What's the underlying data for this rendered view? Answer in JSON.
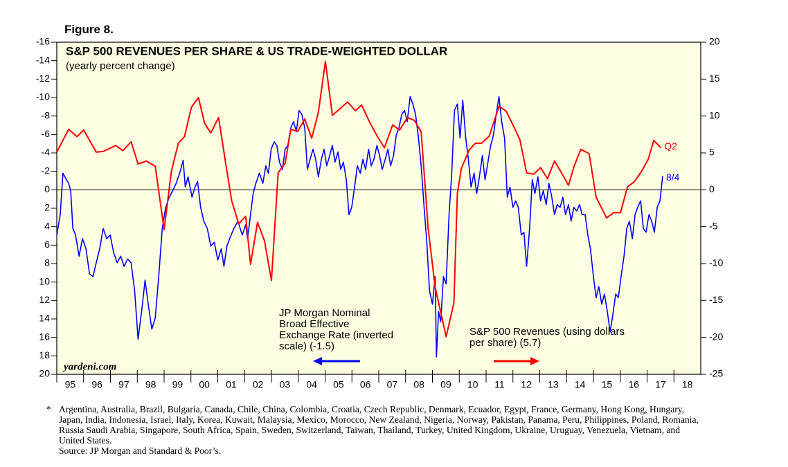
{
  "figure_label": "Figure 8.",
  "chart_data": {
    "type": "line",
    "title": "S&P 500 REVENUES PER SHARE & US TRADE-WEIGHTED DOLLAR",
    "subtitle": "(yearly percent change)",
    "watermark": "yardeni.com",
    "xlim": [
      1995,
      2019
    ],
    "xticks": [
      {
        "value": 1995.5,
        "label": "95"
      },
      {
        "value": 1996.5,
        "label": "96"
      },
      {
        "value": 1997.5,
        "label": "97"
      },
      {
        "value": 1998.5,
        "label": "98"
      },
      {
        "value": 1999.5,
        "label": "99"
      },
      {
        "value": 2000.5,
        "label": "00"
      },
      {
        "value": 2001.5,
        "label": "01"
      },
      {
        "value": 2002.5,
        "label": "02"
      },
      {
        "value": 2003.5,
        "label": "03"
      },
      {
        "value": 2004.5,
        "label": "04"
      },
      {
        "value": 2005.5,
        "label": "05"
      },
      {
        "value": 2006.5,
        "label": "06"
      },
      {
        "value": 2007.5,
        "label": "07"
      },
      {
        "value": 2008.5,
        "label": "08"
      },
      {
        "value": 2009.5,
        "label": "09"
      },
      {
        "value": 2010.5,
        "label": "10"
      },
      {
        "value": 2011.5,
        "label": "11"
      },
      {
        "value": 2012.5,
        "label": "12"
      },
      {
        "value": 2013.5,
        "label": "13"
      },
      {
        "value": 2014.5,
        "label": "14"
      },
      {
        "value": 2015.5,
        "label": "15"
      },
      {
        "value": 2016.5,
        "label": "16"
      },
      {
        "value": 2017.5,
        "label": "17"
      },
      {
        "value": 2018.5,
        "label": "18"
      }
    ],
    "ylim": [
      20,
      -16
    ],
    "yticks": [
      -16,
      -14,
      -12,
      -10,
      -8,
      -6,
      -4,
      -2,
      0,
      2,
      4,
      6,
      8,
      10,
      12,
      14,
      16,
      18,
      20
    ],
    "y2lim": [
      -25,
      20
    ],
    "y2ticks": [
      -25,
      -20,
      -15,
      -10,
      -5,
      0,
      5,
      10,
      15,
      20
    ],
    "zero_line": true,
    "series": [
      {
        "name": "JP Morgan Nominal Broad Effective Exchange Rate (inverted scale) (-1.5)",
        "end_label": "8/4",
        "color": "#0000ff",
        "axis": "y",
        "x": [
          1995.0,
          1995.13,
          1995.23,
          1995.36,
          1995.44,
          1995.52,
          1995.6,
          1995.7,
          1995.83,
          1995.96,
          1996.09,
          1996.22,
          1996.35,
          1996.47,
          1996.6,
          1996.73,
          1996.86,
          1996.99,
          1997.12,
          1997.25,
          1997.38,
          1997.51,
          1997.64,
          1997.77,
          1997.9,
          1998.03,
          1998.16,
          1998.29,
          1998.41,
          1998.54,
          1998.67,
          1998.8,
          1998.93,
          1999.06,
          1999.19,
          1999.32,
          1999.45,
          1999.58,
          1999.71,
          1999.79,
          1999.89,
          2000.04,
          2000.15,
          2000.25,
          2000.36,
          2000.48,
          2000.61,
          2000.74,
          2000.87,
          2001.0,
          2001.13,
          2001.23,
          2001.34,
          2001.44,
          2001.6,
          2001.75,
          2001.91,
          2002.04,
          2002.11,
          2002.22,
          2002.32,
          2002.42,
          2002.55,
          2002.68,
          2002.79,
          2002.89,
          2002.99,
          2003.1,
          2003.2,
          2003.3,
          2003.41,
          2003.51,
          2003.61,
          2003.72,
          2003.82,
          2003.93,
          2004.03,
          2004.13,
          2004.24,
          2004.34,
          2004.44,
          2004.55,
          2004.65,
          2004.75,
          2004.86,
          2004.96,
          2005.06,
          2005.17,
          2005.27,
          2005.37,
          2005.48,
          2005.58,
          2005.68,
          2005.79,
          2005.89,
          2005.99,
          2006.1,
          2006.2,
          2006.31,
          2006.41,
          2006.51,
          2006.62,
          2006.72,
          2006.82,
          2006.93,
          2007.03,
          2007.13,
          2007.24,
          2007.34,
          2007.44,
          2007.55,
          2007.65,
          2007.75,
          2007.86,
          2007.96,
          2008.06,
          2008.17,
          2008.27,
          2008.37,
          2008.48,
          2008.58,
          2008.69,
          2008.79,
          2008.89,
          2009.0,
          2009.1,
          2009.15,
          2009.23,
          2009.31,
          2009.41,
          2009.51,
          2009.62,
          2009.72,
          2009.82,
          2009.93,
          2010.03,
          2010.13,
          2010.24,
          2010.34,
          2010.44,
          2010.55,
          2010.65,
          2010.75,
          2010.86,
          2010.96,
          2011.07,
          2011.17,
          2011.27,
          2011.38,
          2011.48,
          2011.58,
          2011.69,
          2011.79,
          2011.89,
          2012.0,
          2012.1,
          2012.2,
          2012.31,
          2012.41,
          2012.51,
          2012.62,
          2012.72,
          2012.82,
          2012.93,
          2013.03,
          2013.13,
          2013.24,
          2013.34,
          2013.45,
          2013.55,
          2013.65,
          2013.76,
          2013.86,
          2013.96,
          2014.07,
          2014.17,
          2014.27,
          2014.38,
          2014.48,
          2014.58,
          2014.69,
          2014.79,
          2014.89,
          2015.0,
          2015.1,
          2015.2,
          2015.31,
          2015.41,
          2015.52,
          2015.62,
          2015.72,
          2015.83,
          2015.93,
          2016.03,
          2016.14,
          2016.24,
          2016.34,
          2016.45,
          2016.55,
          2016.65,
          2016.76,
          2016.86,
          2016.96,
          2017.07,
          2017.17,
          2017.27,
          2017.38,
          2017.48,
          2017.58
        ],
        "values": [
          4.9,
          2.7,
          -1.8,
          -1.1,
          -0.7,
          0.1,
          4.2,
          4.9,
          7.2,
          5.3,
          6.4,
          9.1,
          9.4,
          7.9,
          6.4,
          4.2,
          5.3,
          4.9,
          6.8,
          7.9,
          7.2,
          8.3,
          7.5,
          7.9,
          10.9,
          16.2,
          13.2,
          9.8,
          12.4,
          15.1,
          13.9,
          9.4,
          4.2,
          1.9,
          0.8,
          0.1,
          -0.7,
          -1.8,
          -3.2,
          -0.3,
          -1.4,
          0.8,
          -0.3,
          -0.9,
          1.9,
          3.4,
          4.2,
          6.1,
          5.7,
          7.6,
          6.4,
          8.3,
          6.1,
          5.3,
          4.2,
          3.4,
          4.9,
          3.8,
          5.3,
          2.7,
          0.4,
          -0.7,
          -1.8,
          -0.7,
          -2.6,
          -1.8,
          -4.4,
          -5.2,
          -4.8,
          -3.0,
          -2.2,
          -4.4,
          -4.8,
          -6.7,
          -7.4,
          -6.3,
          -8.6,
          -8.2,
          -6.7,
          -2.2,
          -3.3,
          -4.4,
          -3.3,
          -1.4,
          -3.3,
          -4.4,
          -2.6,
          -3.7,
          -4.8,
          -3.0,
          -4.1,
          -2.2,
          -3.0,
          -1.1,
          2.7,
          1.9,
          -0.3,
          -2.6,
          -1.8,
          -3.3,
          -2.2,
          -4.4,
          -2.6,
          -3.3,
          -4.8,
          -3.7,
          -2.2,
          -3.3,
          -4.4,
          -2.6,
          -3.7,
          -5.9,
          -6.7,
          -8.2,
          -8.6,
          -7.4,
          -10.1,
          -9.3,
          -8.2,
          -5.6,
          -2.6,
          1.9,
          5.7,
          10.9,
          12.4,
          9.4,
          18.1,
          13.2,
          14.3,
          9.4,
          10.2,
          2.7,
          -1.8,
          -8.6,
          -9.3,
          -5.6,
          -9.7,
          -5.6,
          -3.3,
          -0.3,
          -1.8,
          0.4,
          -1.4,
          -3.7,
          -1.1,
          -3.0,
          -4.8,
          -5.9,
          -8.2,
          -10.1,
          -7.4,
          -5.6,
          0.8,
          -0.3,
          1.9,
          1.2,
          1.9,
          4.9,
          4.6,
          8.3,
          4.2,
          -1.1,
          0.4,
          -1.4,
          1.2,
          0.1,
          1.6,
          -0.7,
          0.8,
          2.7,
          1.6,
          1.9,
          0.8,
          2.7,
          1.6,
          3.4,
          1.9,
          2.3,
          1.6,
          2.7,
          2.7,
          4.9,
          6.4,
          9.4,
          11.7,
          10.5,
          12.4,
          11.3,
          13.2,
          15.4,
          13.6,
          11.3,
          11.7,
          9.4,
          7.2,
          4.2,
          3.4,
          5.3,
          2.7,
          1.9,
          1.2,
          4.2,
          4.6,
          2.7,
          3.4,
          4.6,
          1.9,
          1.2,
          -1.5
        ]
      },
      {
        "name": "S&P 500 Revenues (using dollars per share) (5.7)",
        "end_label": "Q2",
        "color": "#ff0000",
        "axis": "y2",
        "x": [
          1995.0,
          1995.44,
          1995.75,
          1996.0,
          1996.47,
          1996.73,
          1997.2,
          1997.46,
          1997.77,
          1998.03,
          1998.34,
          1998.67,
          1999.0,
          1999.27,
          1999.53,
          1999.76,
          2000.02,
          2000.28,
          2000.51,
          2000.74,
          2001.03,
          2001.29,
          2001.52,
          2001.78,
          2002.04,
          2002.22,
          2002.48,
          2002.74,
          2003.0,
          2003.25,
          2003.51,
          2003.72,
          2003.98,
          2004.24,
          2004.5,
          2004.75,
          2005.01,
          2005.27,
          2005.53,
          2005.84,
          2006.13,
          2006.36,
          2006.64,
          2006.95,
          2007.21,
          2007.52,
          2007.78,
          2008.07,
          2008.33,
          2008.58,
          2008.84,
          2009.1,
          2009.51,
          2009.8,
          2009.93,
          2010.08,
          2010.37,
          2010.6,
          2010.83,
          2011.12,
          2011.48,
          2011.74,
          2012.0,
          2012.26,
          2012.51,
          2012.77,
          2013.03,
          2013.29,
          2013.55,
          2013.81,
          2014.07,
          2014.28,
          2014.53,
          2014.84,
          2015.1,
          2015.49,
          2015.75,
          2016.01,
          2016.27,
          2016.53,
          2016.79,
          2017.04,
          2017.25,
          2017.51
        ],
        "values": [
          5.1,
          8.2,
          7.2,
          8.1,
          5.1,
          5.2,
          6.0,
          5.3,
          6.5,
          3.5,
          3.9,
          3.2,
          -5.4,
          2.5,
          6.3,
          7.2,
          11.2,
          12.5,
          9.0,
          7.7,
          9.8,
          3.7,
          -1.5,
          -4.6,
          -3.6,
          -10.1,
          -4.4,
          -6.9,
          -12.3,
          2.3,
          3.6,
          8.2,
          7.9,
          9.6,
          7.0,
          10.5,
          17.4,
          10.1,
          10.9,
          11.9,
          10.7,
          11.5,
          9.3,
          7.2,
          5.7,
          8.8,
          8.1,
          9.8,
          9.4,
          7.9,
          -5.2,
          -13.2,
          -19.9,
          -15.3,
          -0.5,
          2.9,
          5.4,
          6.3,
          6.3,
          7.3,
          11.3,
          10.7,
          8.8,
          6.8,
          2.3,
          2.1,
          3.0,
          1.5,
          3.9,
          2.3,
          0.6,
          3.2,
          5.5,
          4.9,
          -1.0,
          -3.8,
          -3.1,
          -3.1,
          0.4,
          1.1,
          2.5,
          4.1,
          6.7,
          5.7
        ]
      }
    ]
  },
  "footnote_marker": "*",
  "footnote": "Argentina, Australia, Brazil, Bulgaria, Canada, Chile, China, Colombia, Croatia, Czech Republic, Denmark, Ecuador, Egypt, France, Germany, Hong Kong, Hungary, Japan, India, Indonesia, Israel, Italy, Korea, Kuwait, Malaysia, Mexico, Morocco, New Zealand, Nigeria, Norway, Pakistan, Panama, Peru, Philippines, Poland, Romania, Russia Saudi Arabia, Singapore, South Africa, Spain, Sweden, Switzerland, Taiwan, Thailand, Turkey, United Kingdom, Ukraine, Uruguay, Venezuela, Vietnam, and United States.",
  "source": "Source: JP Morgan and Standard & Poor’s."
}
